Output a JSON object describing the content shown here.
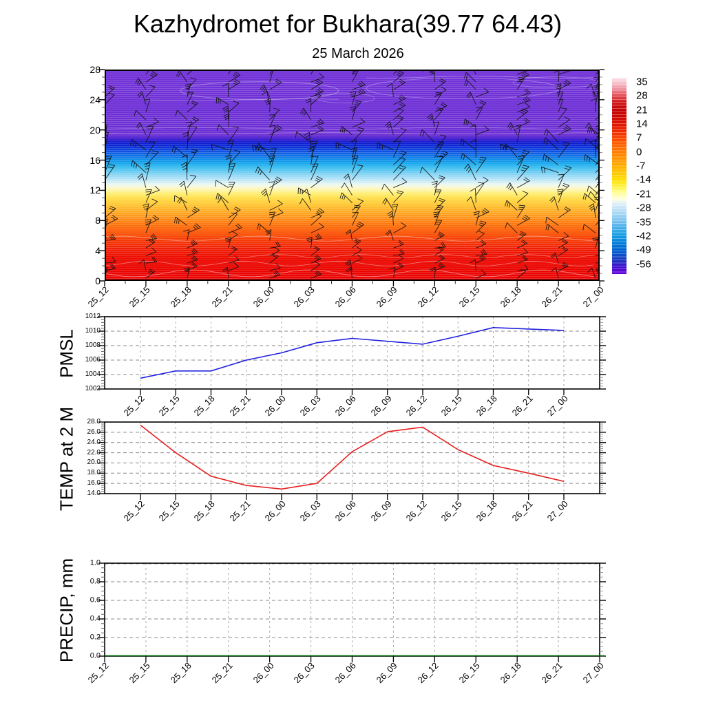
{
  "header": {
    "title": "Kazhydromet for Bukhara(39.77 64.43)",
    "subtitle": "25 March 2026"
  },
  "time_labels": [
    "25_12",
    "25_15",
    "25_18",
    "25_21",
    "26_00",
    "26_03",
    "26_06",
    "26_09",
    "26_12",
    "26_15",
    "26_18",
    "26_21",
    "27_00"
  ],
  "chart_data": [
    {
      "id": "cross_section",
      "type": "heatmap",
      "description": "Time-height cross section of temperature (shaded, deg C) with wind barbs and thin white contour lines",
      "categories": [
        "25_12",
        "25_15",
        "25_18",
        "25_21",
        "26_00",
        "26_03",
        "26_06",
        "26_09",
        "26_12",
        "26_15",
        "26_18",
        "26_21",
        "27_00"
      ],
      "ylim": [
        0,
        28
      ],
      "yticks": [
        0,
        4,
        8,
        12,
        16,
        20,
        24,
        28
      ],
      "bands": [
        {
          "y_from": 0,
          "y_to": 5.5,
          "color_zone": "red",
          "approx_temp_c": "14 to 28"
        },
        {
          "y_from": 5.5,
          "y_to": 10,
          "color_zone": "orange",
          "approx_temp_c": "0 to 14"
        },
        {
          "y_from": 10,
          "y_to": 12.5,
          "color_zone": "yellow",
          "approx_temp_c": "-7 to 0"
        },
        {
          "y_from": 12.5,
          "y_to": 13.5,
          "color_zone": "white",
          "approx_temp_c": "-14 to -7"
        },
        {
          "y_from": 13.5,
          "y_to": 16,
          "color_zone": "light-blue",
          "approx_temp_c": "-28 to -14"
        },
        {
          "y_from": 16,
          "y_to": 18.3,
          "color_zone": "blue",
          "approx_temp_c": "-42 to -28"
        },
        {
          "y_from": 18.3,
          "y_to": 19,
          "color_zone": "dark-blue",
          "approx_temp_c": "-52 to -42"
        },
        {
          "y_from": 19,
          "y_to": 28,
          "color_zone": "purple",
          "approx_temp_c": "below -52"
        }
      ],
      "field_gradient": [
        [
          0,
          "#7233d8"
        ],
        [
          31,
          "#6c2fd4"
        ],
        [
          33,
          "#3a1bd0"
        ],
        [
          34.5,
          "#121dd0"
        ],
        [
          36.5,
          "#0b2ed8"
        ],
        [
          38.5,
          "#0d4de0"
        ],
        [
          41,
          "#0f74e6"
        ],
        [
          44,
          "#14a4ec"
        ],
        [
          46.5,
          "#3fc0f0"
        ],
        [
          49.5,
          "#86d4f4"
        ],
        [
          52.5,
          "#c2e8f8"
        ],
        [
          54.5,
          "#eef9f0"
        ],
        [
          56,
          "#fdf8c8"
        ],
        [
          58.5,
          "#ffef78"
        ],
        [
          61,
          "#ffdd48"
        ],
        [
          64.5,
          "#ffc232"
        ],
        [
          68,
          "#ffa31e"
        ],
        [
          72,
          "#ff8012"
        ],
        [
          76.5,
          "#fb5c0a"
        ],
        [
          80.5,
          "#f63c06"
        ],
        [
          85,
          "#f01c04"
        ],
        [
          90,
          "#ec0a02"
        ],
        [
          100,
          "#ea0202"
        ]
      ],
      "wind_barbs": {
        "columns": 13,
        "rows": 28,
        "color": "#101010"
      },
      "contour_color": "#ffffff",
      "colorbar": {
        "labels": [
          "35",
          "28",
          "21",
          "14",
          "7",
          "0",
          "-7",
          "-14",
          "-21",
          "-28",
          "-35",
          "-42",
          "-49",
          "-56"
        ],
        "gradient": [
          [
            0,
            "#fbe4ea"
          ],
          [
            3,
            "#f6bcc8"
          ],
          [
            6,
            "#ee8c98"
          ],
          [
            9,
            "#e25058"
          ],
          [
            12,
            "#d42020"
          ],
          [
            16,
            "#c40404"
          ],
          [
            20,
            "#cc0800"
          ],
          [
            24,
            "#e01800"
          ],
          [
            28,
            "#f03000"
          ],
          [
            32,
            "#fc5000"
          ],
          [
            36,
            "#ff7000"
          ],
          [
            40,
            "#ff8c00"
          ],
          [
            44,
            "#ffa800"
          ],
          [
            48,
            "#ffc400"
          ],
          [
            52,
            "#ffe000"
          ],
          [
            56,
            "#fff450"
          ],
          [
            59,
            "#ffffa0"
          ],
          [
            62,
            "#ffffe0"
          ],
          [
            64,
            "#e0f0fa"
          ],
          [
            68,
            "#b4dcf6"
          ],
          [
            72,
            "#84c8f0"
          ],
          [
            76,
            "#50b0ea"
          ],
          [
            80,
            "#18a0e4"
          ],
          [
            83,
            "#0888dc"
          ],
          [
            86,
            "#0070d4"
          ],
          [
            89,
            "#0058cc"
          ],
          [
            92,
            "#1840c4"
          ],
          [
            94,
            "#2428c4"
          ],
          [
            96,
            "#3c14cc"
          ],
          [
            98,
            "#5408d4"
          ],
          [
            100,
            "#6400dc"
          ]
        ]
      }
    },
    {
      "id": "pmsl",
      "type": "line",
      "label": "PMSL",
      "color": "#2222dd",
      "categories": [
        "25_12",
        "25_15",
        "25_18",
        "25_21",
        "26_00",
        "26_03",
        "26_06",
        "26_09",
        "26_12",
        "26_15",
        "26_18",
        "26_21",
        "27_00"
      ],
      "values": [
        1003.5,
        1004.5,
        1004.5,
        1006.0,
        1007.0,
        1008.4,
        1009.0,
        1008.6,
        1008.2,
        1009.3,
        1010.5,
        1010.3,
        1010.1
      ],
      "ylim": [
        1002,
        1012
      ],
      "ytick_step": 2,
      "ytick_decimals": 0
    },
    {
      "id": "temp2m",
      "type": "line",
      "label": "TEMP at 2 M",
      "color": "#e82020",
      "categories": [
        "25_12",
        "25_15",
        "25_18",
        "25_21",
        "26_00",
        "26_03",
        "26_06",
        "26_09",
        "26_12",
        "26_15",
        "26_18",
        "26_21",
        "27_00"
      ],
      "values": [
        27.4,
        22.0,
        17.4,
        15.6,
        14.9,
        16.0,
        22.2,
        26.1,
        27.0,
        22.6,
        19.5,
        18.0,
        16.4
      ],
      "ylim": [
        14,
        28
      ],
      "ytick_step": 2,
      "ytick_decimals": 1
    },
    {
      "id": "precip",
      "type": "line",
      "label": "PRECIP, mm",
      "color": "#006600",
      "categories": [
        "25_12",
        "25_15",
        "25_18",
        "25_21",
        "26_00",
        "26_03",
        "26_06",
        "26_09",
        "26_12",
        "26_15",
        "26_18",
        "26_21",
        "27_00"
      ],
      "values": [
        0,
        0,
        0,
        0,
        0,
        0,
        0,
        0,
        0,
        0,
        0,
        0,
        0
      ],
      "ylim": [
        0,
        1
      ],
      "ytick_step": 0.2,
      "ytick_decimals": 1
    }
  ]
}
